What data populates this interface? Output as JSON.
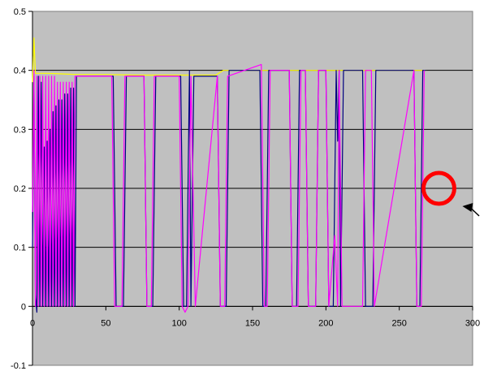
{
  "chart_data": {
    "type": "line",
    "title": "",
    "xlabel": "",
    "ylabel": "",
    "xlim": [
      0,
      300
    ],
    "ylim": [
      -0.1,
      0.5
    ],
    "x_ticks": [
      0,
      50,
      100,
      150,
      200,
      250,
      300
    ],
    "y_ticks": [
      -0.1,
      0,
      0.1,
      0.2,
      0.3,
      0.4,
      0.5
    ],
    "x_tick_labels": [
      "0",
      "50",
      "100",
      "150",
      "200",
      "250",
      "300"
    ],
    "y_tick_labels": [
      "-0.1",
      "0",
      "0.1",
      "0.2",
      "0.3",
      "0.4",
      "0.5"
    ],
    "grid": "horizontal",
    "legend": "none",
    "plot_background": "#c0c0c0",
    "series": [
      {
        "color": "#ffff00",
        "x": [
          0,
          1,
          2,
          4,
          10,
          20,
          30,
          50,
          70,
          90,
          110,
          125,
          130,
          160,
          200,
          240,
          268
        ],
        "y": [
          0.38,
          0.455,
          0.395,
          0.395,
          0.395,
          0.394,
          0.393,
          0.393,
          0.392,
          0.392,
          0.392,
          0.392,
          0.4,
          0.4,
          0.4,
          0.4,
          0.4
        ]
      },
      {
        "color": "#000080",
        "x": [
          0,
          1,
          2,
          3,
          4,
          5,
          6,
          7,
          8,
          9,
          10,
          11,
          12,
          13,
          14,
          15,
          16,
          17,
          18,
          19,
          20,
          21,
          22,
          23,
          24,
          25,
          26,
          27,
          28,
          29,
          30,
          32,
          55,
          57,
          62,
          64,
          76,
          78,
          82,
          84,
          101,
          103,
          105,
          107,
          108,
          110,
          126,
          128,
          132,
          134,
          155,
          157,
          159,
          161,
          175,
          177,
          180,
          182,
          186,
          188,
          193,
          195,
          200,
          202,
          205,
          207,
          208,
          209,
          210,
          212,
          225,
          227,
          232,
          234,
          260,
          262,
          264,
          266,
          268
        ],
        "y": [
          0.1,
          0.39,
          0.02,
          -0.01,
          0.39,
          0.0,
          0.38,
          0.0,
          0.27,
          0.0,
          0.28,
          0.0,
          0.3,
          0.0,
          0.33,
          0.0,
          0.34,
          0.0,
          0.35,
          0.0,
          0.35,
          0.0,
          0.36,
          0.0,
          0.36,
          0.0,
          0.37,
          0.0,
          0.37,
          0.0,
          0.39,
          0.39,
          0.39,
          0.0,
          0.0,
          0.39,
          0.39,
          0.0,
          0.0,
          0.39,
          0.39,
          0.0,
          0.0,
          0.4,
          0.0,
          0.39,
          0.39,
          0.0,
          0.0,
          0.4,
          0.4,
          0.0,
          0.0,
          0.4,
          0.4,
          0.0,
          0.0,
          0.4,
          0.4,
          0.0,
          0.0,
          0.4,
          0.4,
          0.0,
          0.0,
          0.4,
          0.28,
          0.4,
          0.0,
          0.4,
          0.4,
          0.0,
          0.0,
          0.4,
          0.4,
          0.0,
          0.0,
          0.4,
          0.4
        ]
      },
      {
        "color": "#ff00ff",
        "x": [
          0,
          1,
          2,
          3,
          4,
          5,
          6,
          7,
          8,
          9,
          10,
          11,
          12,
          13,
          14,
          15,
          16,
          17,
          18,
          19,
          20,
          21,
          22,
          23,
          24,
          25,
          26,
          27,
          28,
          29,
          30,
          32,
          54,
          56,
          61,
          63,
          76,
          78,
          81,
          83,
          100,
          102,
          104,
          106,
          108,
          111,
          126,
          128,
          131,
          133,
          156,
          158,
          160,
          162,
          175,
          177,
          181,
          183,
          186,
          188,
          193,
          195,
          200,
          202,
          206,
          208,
          209,
          211,
          225,
          227,
          231,
          233,
          260,
          262,
          265,
          267
        ],
        "y": [
          0.16,
          0.4,
          0.0,
          0.39,
          0.0,
          0.39,
          0.0,
          0.39,
          0.0,
          0.39,
          0.0,
          0.39,
          0.0,
          0.39,
          0.0,
          0.39,
          0.0,
          0.38,
          0.0,
          0.38,
          0.0,
          0.38,
          0.0,
          0.38,
          0.0,
          0.38,
          0.0,
          0.38,
          0.0,
          0.39,
          0.39,
          0.39,
          0.39,
          0.0,
          0.0,
          0.39,
          0.39,
          0.0,
          0.0,
          0.39,
          0.39,
          0.0,
          -0.01,
          0.0,
          0.39,
          0.0,
          0.39,
          0.0,
          0.0,
          0.39,
          0.41,
          0.0,
          0.0,
          0.4,
          0.4,
          0.0,
          0.0,
          0.4,
          0.4,
          0.0,
          0.0,
          0.4,
          0.4,
          0.0,
          0.12,
          0.0,
          0.4,
          0.0,
          0.0,
          0.4,
          0.4,
          0.0,
          0.4,
          0.0,
          0.0,
          0.4
        ]
      }
    ],
    "annotations": [
      {
        "type": "circle",
        "color": "#ff0000",
        "x": 277,
        "y": 0.2
      },
      {
        "type": "arrow",
        "color": "#000000",
        "points_to": "circle"
      }
    ]
  }
}
